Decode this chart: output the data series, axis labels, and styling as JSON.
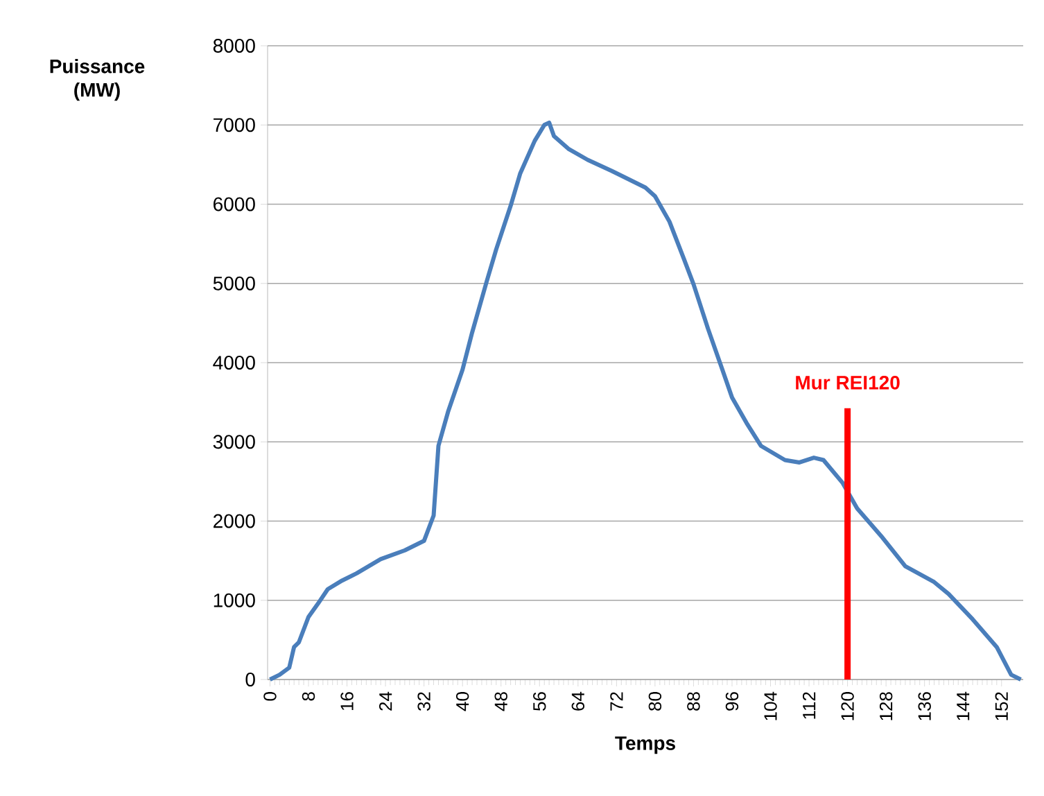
{
  "chart_data": {
    "type": "line",
    "xlabel": "Temps",
    "ylabel": "Puissance (MW)",
    "x": [
      0,
      2,
      4,
      5,
      6,
      8,
      10,
      12,
      15,
      18,
      23,
      28,
      32,
      34,
      35,
      37,
      40,
      42,
      45,
      47,
      50,
      52,
      55,
      57,
      58,
      59,
      62,
      66,
      71,
      74,
      78,
      80,
      83,
      86,
      88,
      91,
      94,
      96,
      99,
      102,
      107,
      110,
      113,
      115,
      119,
      122,
      127,
      132,
      138,
      141,
      146,
      151,
      154,
      156
    ],
    "series": [
      {
        "color": "#4a7ebb",
        "values": [
          0,
          60,
          150,
          410,
          470,
          790,
          960,
          1140,
          1250,
          1340,
          1520,
          1630,
          1750,
          2070,
          2950,
          3380,
          3910,
          4380,
          5020,
          5430,
          5980,
          6390,
          6800,
          7000,
          7030,
          6860,
          6700,
          6560,
          6420,
          6330,
          6210,
          6100,
          5780,
          5310,
          4990,
          4430,
          3910,
          3560,
          3240,
          2950,
          2770,
          2740,
          2800,
          2770,
          2480,
          2160,
          1810,
          1430,
          1230,
          1080,
          760,
          410,
          60,
          0
        ]
      }
    ],
    "xlim": [
      -0.5,
      156.5
    ],
    "xticks": [
      0,
      8,
      16,
      24,
      32,
      40,
      48,
      56,
      64,
      72,
      80,
      88,
      96,
      104,
      112,
      120,
      128,
      136,
      144,
      152
    ],
    "ylim": [
      0,
      8000
    ],
    "yticks": [
      0,
      1000,
      2000,
      3000,
      4000,
      5000,
      6000,
      7000,
      8000
    ],
    "grid": "y",
    "marker": "none",
    "line_style": "solid",
    "ref_lines": [
      {
        "axis": "x",
        "value": 120,
        "label": "Mur REI120",
        "color": "#ff0000"
      }
    ]
  }
}
